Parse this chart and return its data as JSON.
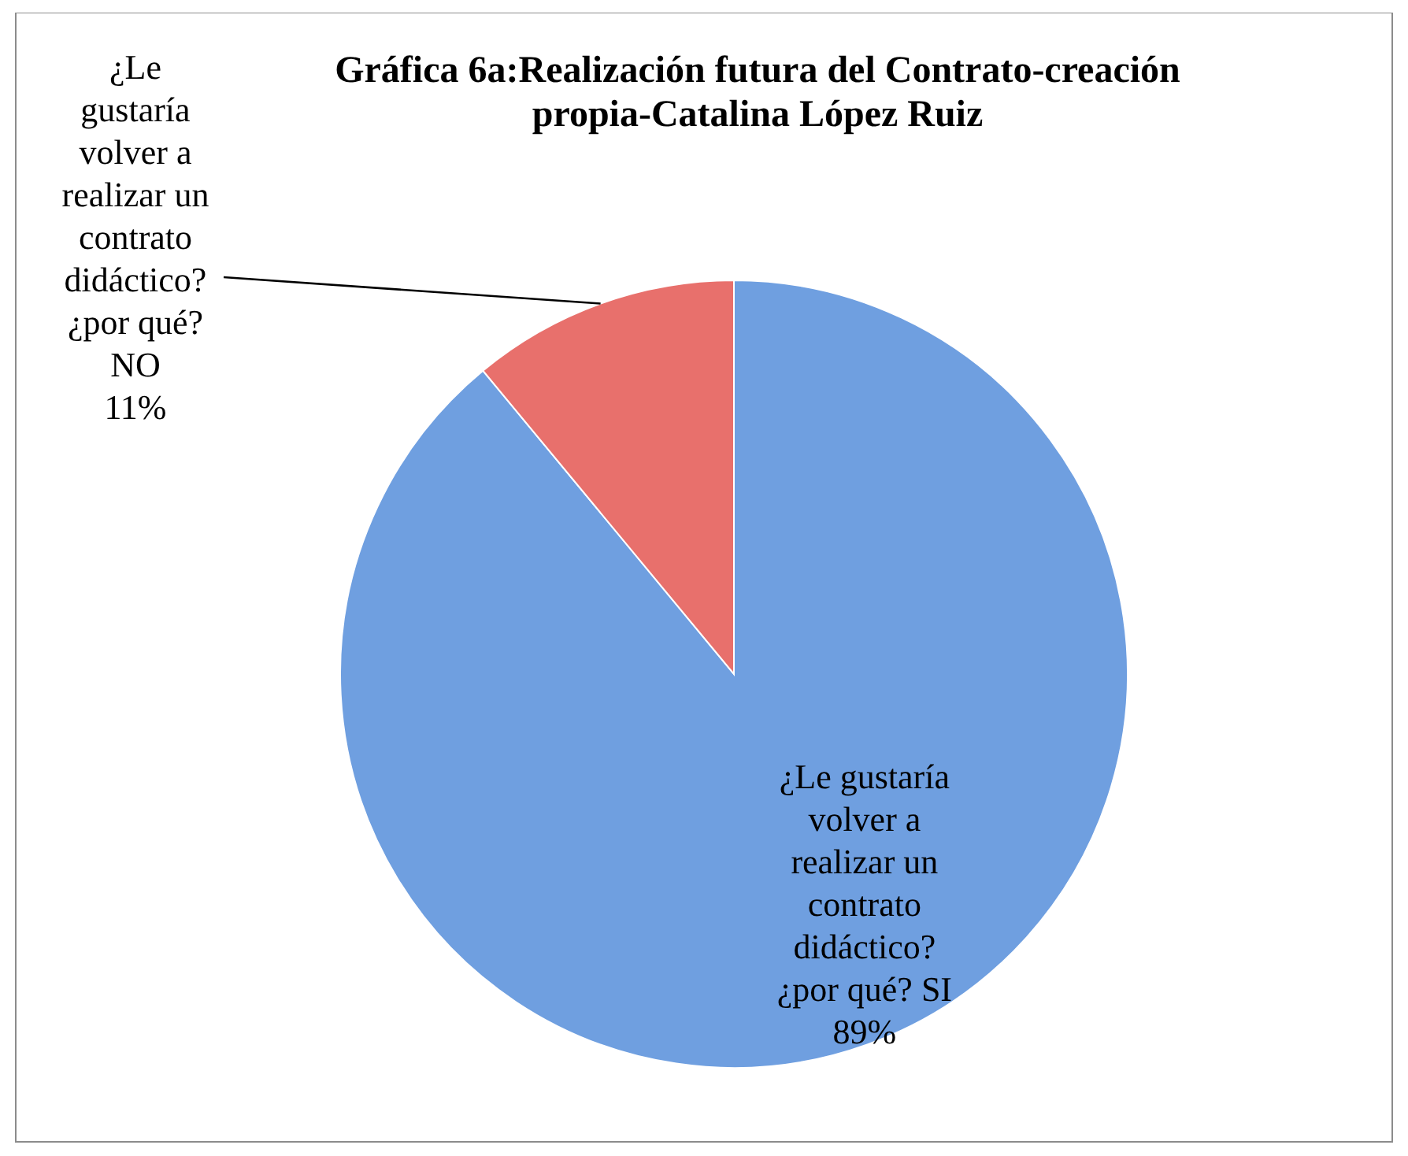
{
  "chart_data": {
    "type": "pie",
    "title": "Gráfica 6a:Realización futura del Contrato-creación propia-Catalina López Ruiz",
    "categories": [
      "¿Le gustaría volver a realizar un contrato didáctico? ¿por qué? SI",
      "¿Le gustaría volver a realizar un contrato didáctico? ¿por qué? NO"
    ],
    "values": [
      89,
      11
    ],
    "colors": [
      "#6f9fe0",
      "#e8706c"
    ],
    "value_labels": [
      "89%",
      "11%"
    ]
  }
}
